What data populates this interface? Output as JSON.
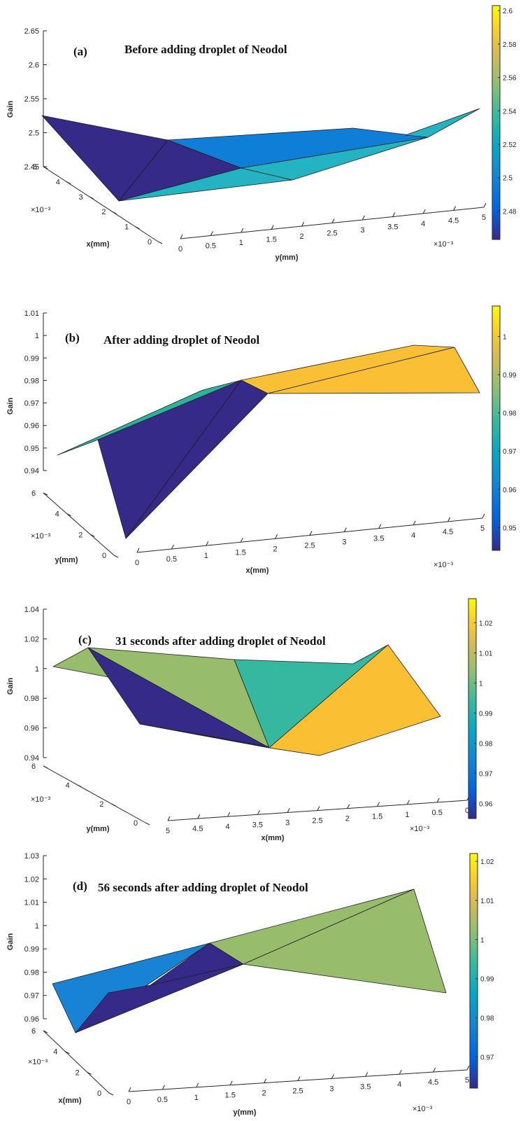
{
  "chart_data": [
    {
      "type": "surface",
      "panel_label": "(a)",
      "title": "Before adding droplet of Neodol",
      "xlabel": "x(mm)",
      "ylabel": "y(mm)",
      "zlabel": "Gain",
      "scale_note_x": "×10⁻³",
      "scale_note_y": "×10⁻³",
      "zlim": [
        2.45,
        2.65
      ],
      "z_ticks": [
        "2.45",
        "2.5",
        "2.55",
        "2.6",
        "2.65"
      ],
      "x_ticks": [
        "0",
        "1",
        "2",
        "3",
        "4",
        "5"
      ],
      "y_ticks": [
        "0",
        "0.5",
        "1",
        "1.5",
        "2",
        "2.5",
        "3",
        "3.5",
        "4",
        "4.5",
        "5"
      ],
      "colorbar": {
        "range": [
          2.463,
          2.603
        ],
        "ticks": [
          "2.48",
          "2.5",
          "2.52",
          "2.54",
          "2.56",
          "2.58",
          "2.6"
        ],
        "colormap": "parula"
      },
      "surface_colors": {
        "low": "#352a87",
        "mid": "#0f7ed6",
        "high": "#24b3c3"
      }
    },
    {
      "type": "surface",
      "panel_label": "(b)",
      "title": "After adding droplet of Neodol",
      "xlabel": "x(mm)",
      "ylabel": "y(mm)",
      "zlabel": "Gain",
      "scale_note_x": "×10⁻³",
      "scale_note_y": "×10⁻³",
      "zlim": [
        0.94,
        1.01
      ],
      "z_ticks": [
        "0.94",
        "0.95",
        "0.96",
        "0.97",
        "0.98",
        "0.99",
        "1",
        "1.01"
      ],
      "x_ticks": [
        "0",
        "0.5",
        "1",
        "1.5",
        "2",
        "2.5",
        "3",
        "3.5",
        "4",
        "4.5",
        "5"
      ],
      "y_ticks": [
        "0",
        "2",
        "4",
        "6"
      ],
      "colorbar": {
        "range": [
          0.944,
          1.008
        ],
        "ticks": [
          "0.95",
          "0.96",
          "0.97",
          "0.98",
          "0.99",
          "1"
        ],
        "colormap": "parula"
      },
      "surface_colors": {
        "low": "#352a87",
        "mid": "#2db39b",
        "high": "#f9bf35"
      }
    },
    {
      "type": "surface",
      "panel_label": "(c)",
      "title": "31 seconds after adding droplet of Neodol",
      "xlabel": "x(mm)",
      "ylabel": "y(mm)",
      "zlabel": "Gain",
      "scale_note_x": "×10⁻³",
      "scale_note_y": "×10⁻³",
      "zlim": [
        0.94,
        1.04
      ],
      "z_ticks": [
        "0.94",
        "0.96",
        "0.98",
        "1",
        "1.02",
        "1.04"
      ],
      "x_ticks": [
        "5",
        "4.5",
        "4",
        "3.5",
        "3",
        "2.5",
        "2",
        "1.5",
        "1",
        "0.5",
        "0"
      ],
      "y_ticks": [
        "0",
        "2",
        "4",
        "6"
      ],
      "colorbar": {
        "range": [
          0.955,
          1.028
        ],
        "ticks": [
          "0.96",
          "0.97",
          "0.98",
          "0.99",
          "1",
          "1.01",
          "1.02"
        ],
        "colormap": "parula"
      },
      "surface_colors": {
        "low": "#352a87",
        "mid": "#35b89f",
        "alt": "#96bc6c",
        "high": "#fbbf33"
      }
    },
    {
      "type": "surface",
      "panel_label": "(d)",
      "title": "56 seconds after adding droplet of Neodol",
      "xlabel": "x(mm)",
      "ylabel": "y(mm)",
      "zlabel": "Gain",
      "scale_note_x": "×10⁻³",
      "scale_note_y": "×10⁻³",
      "zlim": [
        0.96,
        1.03
      ],
      "z_ticks": [
        "0.96",
        "0.97",
        "0.98",
        "0.99",
        "1",
        "1.01",
        "1.02",
        "1.03"
      ],
      "x_ticks": [
        "0",
        "2",
        "4",
        "6"
      ],
      "y_ticks": [
        "0",
        "0.5",
        "1",
        "1.5",
        "2",
        "2.5",
        "3",
        "3.5",
        "4",
        "4.5",
        "5"
      ],
      "colorbar": {
        "range": [
          0.962,
          1.022
        ],
        "ticks": [
          "0.97",
          "0.98",
          "0.99",
          "1",
          "1.01",
          "1.02"
        ],
        "colormap": "parula"
      },
      "surface_colors": {
        "low": "#352a87",
        "mid": "#1883d5",
        "high": "#97bc6c"
      }
    }
  ]
}
